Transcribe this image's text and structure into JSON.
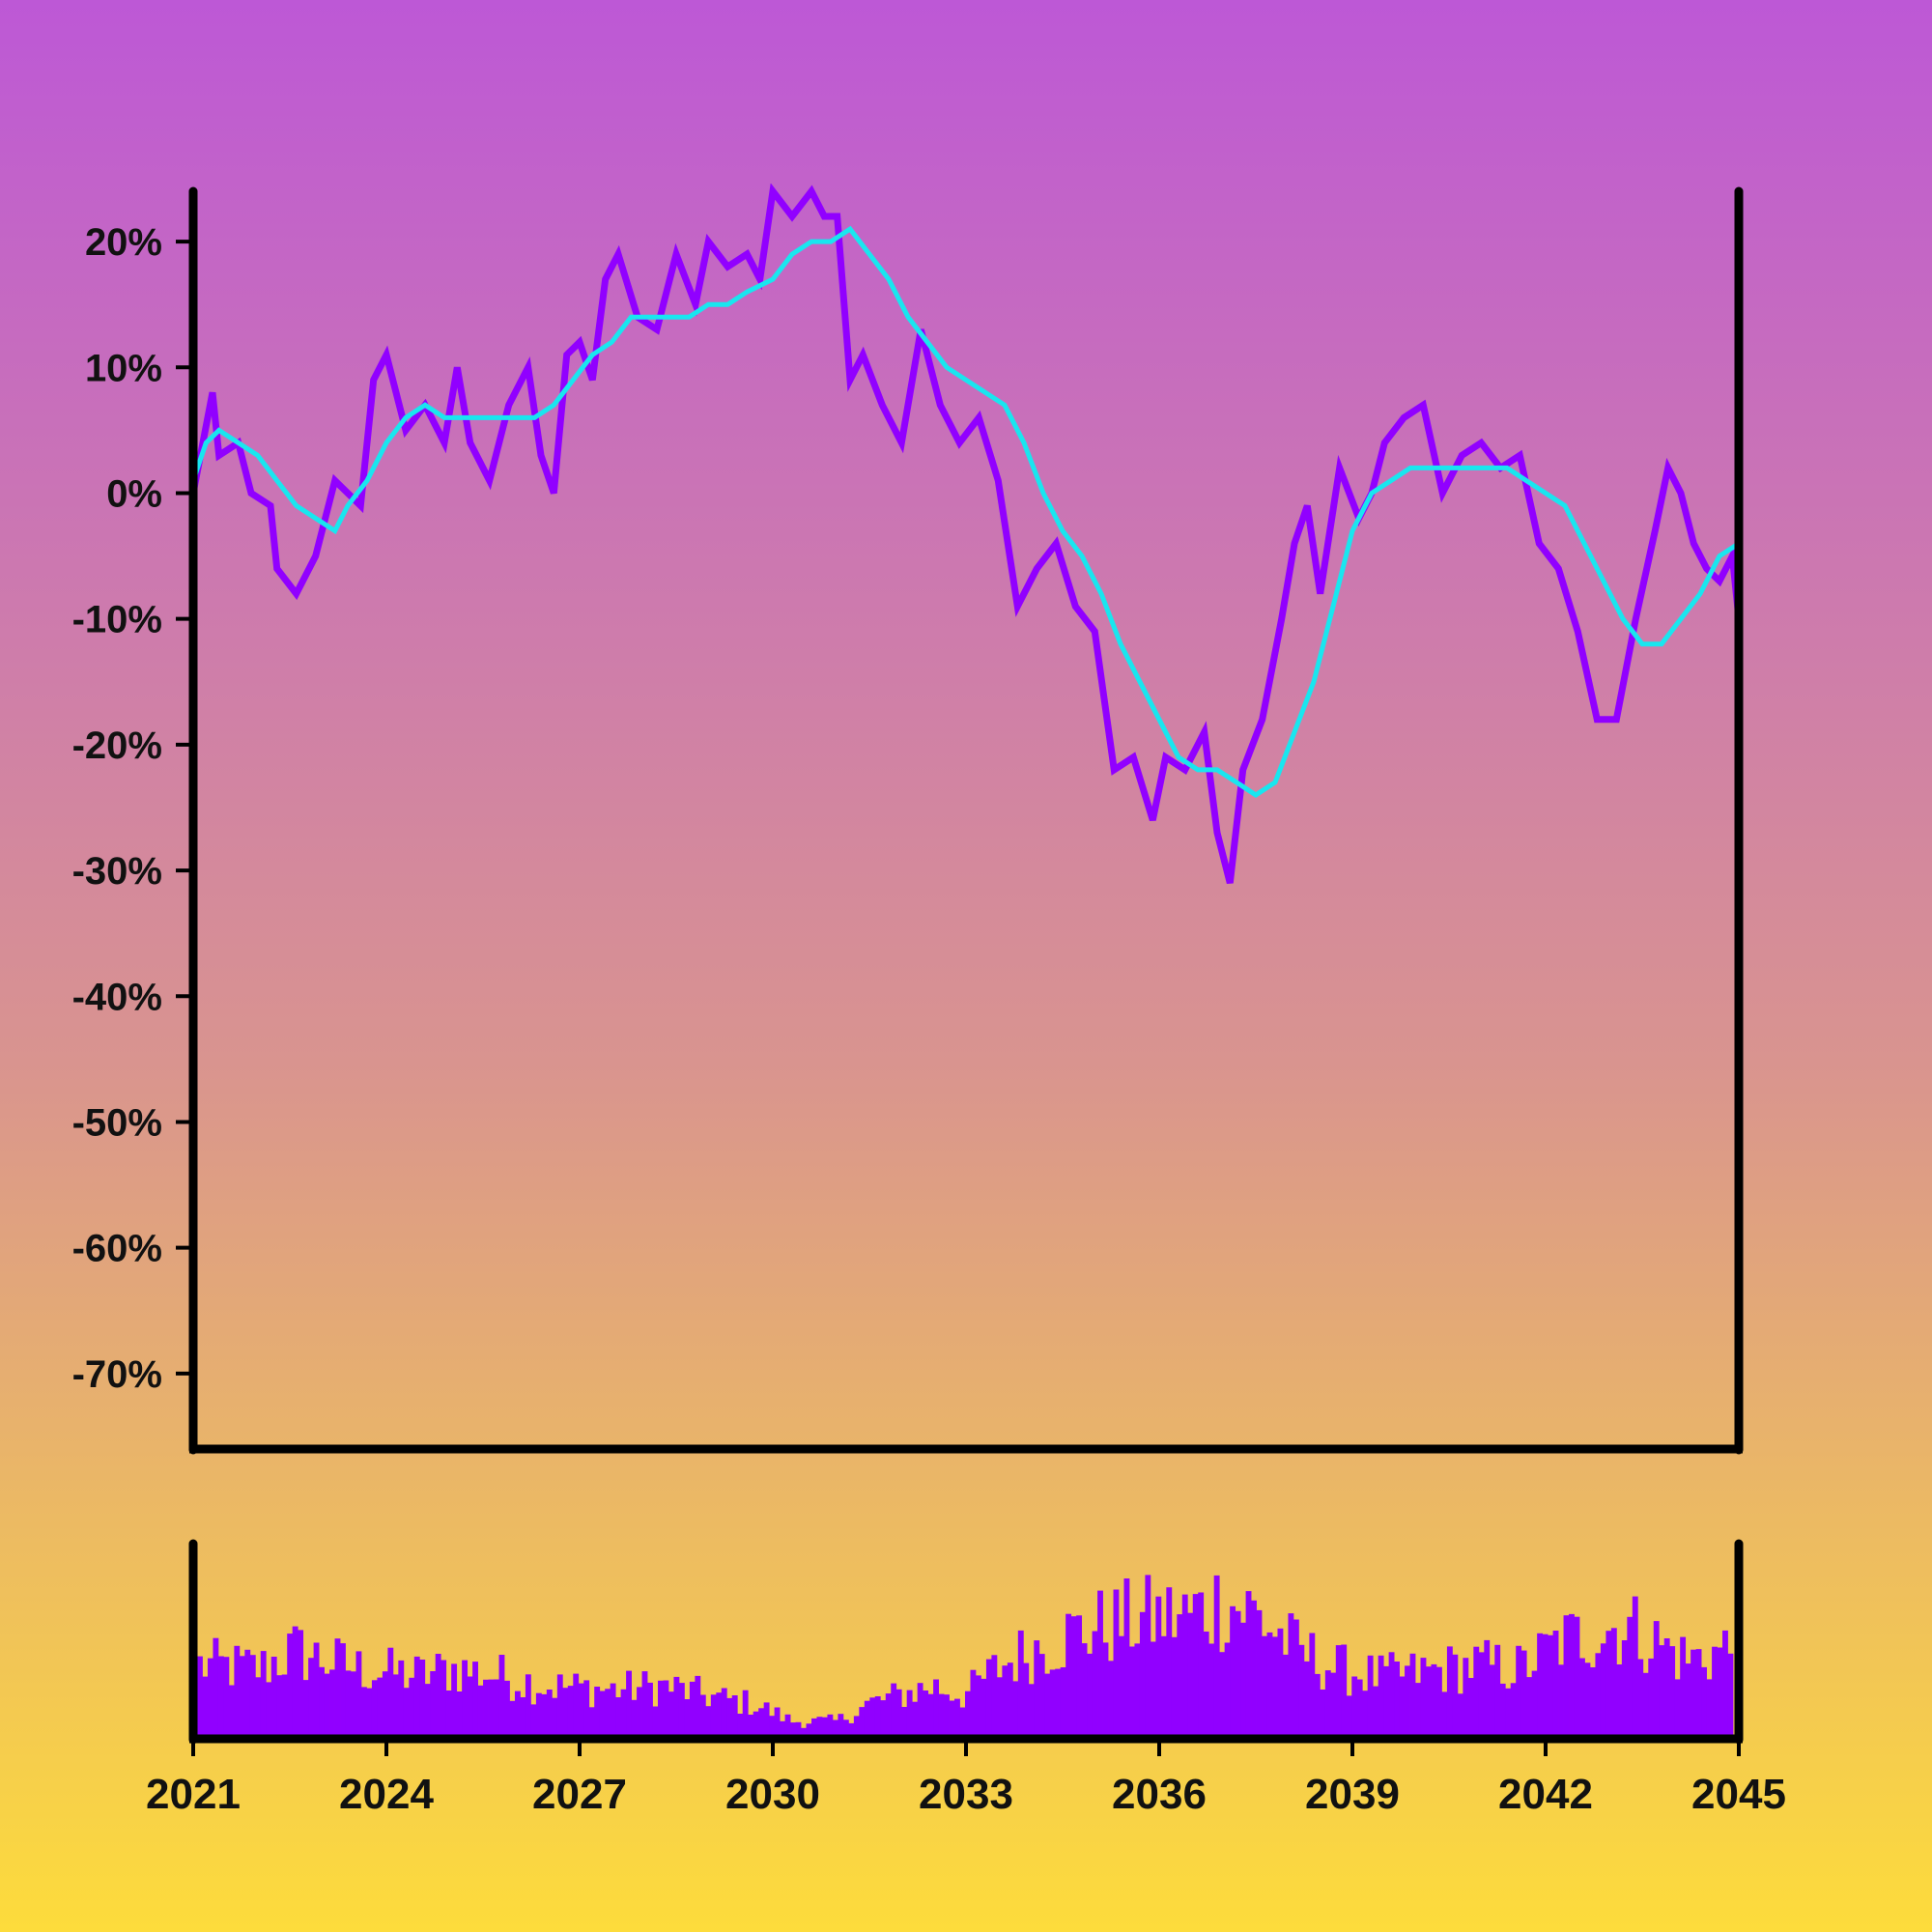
{
  "colors": {
    "background_top": "#bd58d6",
    "background_middle": "#d9948f",
    "background_bottom": "#fddc3b",
    "price_line": "#9100ff",
    "moving_average_line": "#19e6ef",
    "volume_bars": "#9100ff",
    "axes": "#000000",
    "text": "#111111"
  },
  "chart_data": [
    {
      "type": "line",
      "title": "",
      "xlabel": "",
      "ylabel": "",
      "y_unit": "%",
      "xlim": [
        2021,
        2045
      ],
      "ylim": [
        -76,
        24
      ],
      "x_ticks": [
        2021,
        2024,
        2027,
        2030,
        2033,
        2036,
        2039,
        2042,
        2045
      ],
      "y_ticks": [
        20,
        10,
        0,
        -10,
        -20,
        -30,
        -40,
        -50,
        -60,
        -70
      ],
      "y_tick_labels": [
        "20%",
        "10%",
        "0%",
        "-10%",
        "-20%",
        "-30%",
        "-40%",
        "-50%",
        "-60%",
        "-70%"
      ],
      "grid": false,
      "legend": "none",
      "series": [
        {
          "role": "price",
          "x": [
            2021.0,
            2021.3,
            2021.4,
            2021.7,
            2021.9,
            2022.2,
            2022.3,
            2022.6,
            2022.9,
            2023.2,
            2023.4,
            2023.6,
            2023.8,
            2024.0,
            2024.3,
            2024.6,
            2024.9,
            2025.1,
            2025.3,
            2025.6,
            2025.9,
            2026.2,
            2026.4,
            2026.6,
            2026.8,
            2027.0,
            2027.2,
            2027.4,
            2027.6,
            2027.9,
            2028.2,
            2028.5,
            2028.8,
            2029.0,
            2029.3,
            2029.6,
            2029.8,
            2030.0,
            2030.3,
            2030.6,
            2030.8,
            2031.0,
            2031.2,
            2031.4,
            2031.7,
            2032.0,
            2032.3,
            2032.6,
            2032.9,
            2033.2,
            2033.5,
            2033.8,
            2034.1,
            2034.4,
            2034.7,
            2035.0,
            2035.3,
            2035.6,
            2035.9,
            2036.1,
            2036.4,
            2036.7,
            2036.9,
            2037.1,
            2037.3,
            2037.6,
            2037.9,
            2038.1,
            2038.3,
            2038.5,
            2038.8,
            2039.1,
            2039.3,
            2039.5,
            2039.8,
            2040.1,
            2040.4,
            2040.7,
            2041.0,
            2041.3,
            2041.6,
            2041.9,
            2042.2,
            2042.5,
            2042.8,
            2043.1,
            2043.4,
            2043.7,
            2043.9,
            2044.1,
            2044.3,
            2044.5,
            2044.7,
            2044.9,
            2045.0
          ],
          "y": [
            0,
            8,
            3,
            4,
            0,
            -1,
            -6,
            -8,
            -5,
            1,
            0,
            -1,
            9,
            11,
            5,
            7,
            4,
            10,
            4,
            1,
            7,
            10,
            3,
            0,
            11,
            12,
            9,
            17,
            19,
            14,
            13,
            19,
            15,
            20,
            18,
            19,
            17,
            24,
            22,
            24,
            22,
            22,
            9,
            11,
            7,
            4,
            13,
            7,
            4,
            6,
            1,
            -9,
            -6,
            -4,
            -9,
            -11,
            -22,
            -21,
            -26,
            -21,
            -22,
            -19,
            -27,
            -31,
            -22,
            -18,
            -10,
            -4,
            -1,
            -8,
            2,
            -2,
            0,
            4,
            6,
            7,
            0,
            3,
            4,
            2,
            3,
            -4,
            -6,
            -11,
            -18,
            -18,
            -10,
            -3,
            2,
            0,
            -4,
            -6,
            -7,
            -5,
            -10
          ]
        },
        {
          "role": "moving-average",
          "x": [
            2021.0,
            2021.2,
            2021.4,
            2021.7,
            2022.0,
            2022.3,
            2022.6,
            2022.9,
            2023.2,
            2023.4,
            2023.7,
            2024.0,
            2024.3,
            2024.6,
            2024.9,
            2025.2,
            2025.6,
            2026.0,
            2026.3,
            2026.6,
            2026.9,
            2027.2,
            2027.5,
            2027.8,
            2028.1,
            2028.4,
            2028.7,
            2029.0,
            2029.3,
            2029.6,
            2030.0,
            2030.3,
            2030.6,
            2030.9,
            2031.2,
            2031.5,
            2031.8,
            2032.1,
            2032.4,
            2032.7,
            2033.0,
            2033.3,
            2033.6,
            2033.9,
            2034.2,
            2034.5,
            2034.8,
            2035.1,
            2035.4,
            2035.7,
            2036.0,
            2036.3,
            2036.6,
            2036.9,
            2037.2,
            2037.5,
            2037.8,
            2038.1,
            2038.4,
            2038.7,
            2039.0,
            2039.3,
            2039.6,
            2039.9,
            2040.2,
            2040.5,
            2040.8,
            2041.1,
            2041.4,
            2041.7,
            2042.0,
            2042.3,
            2042.6,
            2042.9,
            2043.2,
            2043.5,
            2043.8,
            2044.1,
            2044.4,
            2044.7,
            2045.0
          ],
          "y": [
            1,
            4,
            5,
            4,
            3,
            1,
            -1,
            -2,
            -3,
            -1,
            1,
            4,
            6,
            7,
            6,
            6,
            6,
            6,
            6,
            7,
            9,
            11,
            12,
            14,
            14,
            14,
            14,
            15,
            15,
            16,
            17,
            19,
            20,
            20,
            21,
            19,
            17,
            14,
            12,
            10,
            9,
            8,
            7,
            4,
            0,
            -3,
            -5,
            -8,
            -12,
            -15,
            -18,
            -21,
            -22,
            -22,
            -23,
            -24,
            -23,
            -19,
            -15,
            -9,
            -3,
            0,
            1,
            2,
            2,
            2,
            2,
            2,
            2,
            1,
            0,
            -1,
            -4,
            -7,
            -10,
            -12,
            -12,
            -10,
            -8,
            -5,
            -4
          ]
        }
      ]
    },
    {
      "type": "bar",
      "title": "",
      "xlabel": "",
      "ylabel": "",
      "xlim": [
        2021,
        2045
      ],
      "x_ticks": [
        2021,
        2024,
        2027,
        2030,
        2033,
        2036,
        2039,
        2042,
        2045
      ],
      "x_tick_labels": [
        "2021",
        "2024",
        "2027",
        "2030",
        "2033",
        "2036",
        "2039",
        "2042",
        "2045"
      ],
      "ylim": [
        0,
        100
      ],
      "grid": false,
      "legend": "none",
      "anchors": {
        "x": [
          2021.0,
          2022.0,
          2022.5,
          2023.5,
          2024.5,
          2025.0,
          2025.7,
          2026.5,
          2027.5,
          2028.3,
          2029.3,
          2029.7,
          2030.3,
          2031.0,
          2031.5,
          2032.0,
          2032.5,
          2033.0,
          2033.5,
          2034.0,
          2034.7,
          2035.3,
          2035.8,
          2036.5,
          2037.0,
          2037.5,
          2038.2,
          2038.8,
          2039.5,
          2040.2,
          2041.0,
          2041.7,
          2042.3,
          2042.8,
          2043.3,
          2043.8,
          2044.3,
          2045.0
        ],
        "y": [
          42,
          40,
          50,
          40,
          36,
          40,
          36,
          30,
          28,
          30,
          22,
          20,
          10,
          10,
          20,
          25,
          30,
          25,
          40,
          50,
          60,
          65,
          68,
          70,
          78,
          72,
          50,
          40,
          35,
          38,
          42,
          40,
          55,
          60,
          65,
          55,
          45,
          52
        ]
      },
      "bar_count": 290
    }
  ]
}
